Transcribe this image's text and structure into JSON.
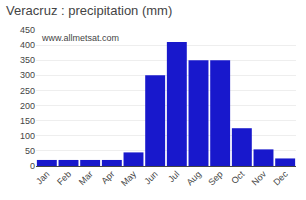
{
  "chart_data": {
    "type": "bar",
    "title": "Veracruz : precipitation (mm)",
    "categories": [
      "Jan",
      "Feb",
      "Mar",
      "Apr",
      "May",
      "Jun",
      "Jul",
      "Aug",
      "Sep",
      "Oct",
      "Nov",
      "Dec"
    ],
    "values": [
      20,
      20,
      20,
      20,
      45,
      300,
      410,
      350,
      350,
      125,
      55,
      25
    ],
    "color": "#1818cc",
    "ylim": [
      0,
      450
    ],
    "yticks": [
      0,
      50,
      100,
      150,
      200,
      250,
      300,
      350,
      400,
      450
    ],
    "grid": true,
    "annotations": [
      "www.allmetsat.com"
    ]
  }
}
